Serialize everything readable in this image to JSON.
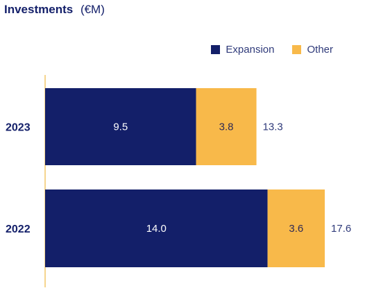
{
  "title": "Investments",
  "unit": "(€M)",
  "colors": {
    "expansion": "#131f69",
    "other": "#f8b94a",
    "axis": "#f2c768",
    "total_text": "#2f3a7a"
  },
  "chart_data": {
    "type": "bar",
    "orientation": "horizontal",
    "stacked": true,
    "categories": [
      "2023",
      "2022"
    ],
    "series": [
      {
        "name": "Expansion",
        "values": [
          9.5,
          14.0
        ],
        "labels": [
          "9.5",
          "14.0"
        ]
      },
      {
        "name": "Other",
        "values": [
          3.8,
          3.6
        ],
        "labels": [
          "3.8",
          "3.6"
        ]
      }
    ],
    "totals": [
      "13.3",
      "17.6"
    ],
    "title": "Investments",
    "unit": "(€M)",
    "legend": "top-right",
    "grid": false
  }
}
